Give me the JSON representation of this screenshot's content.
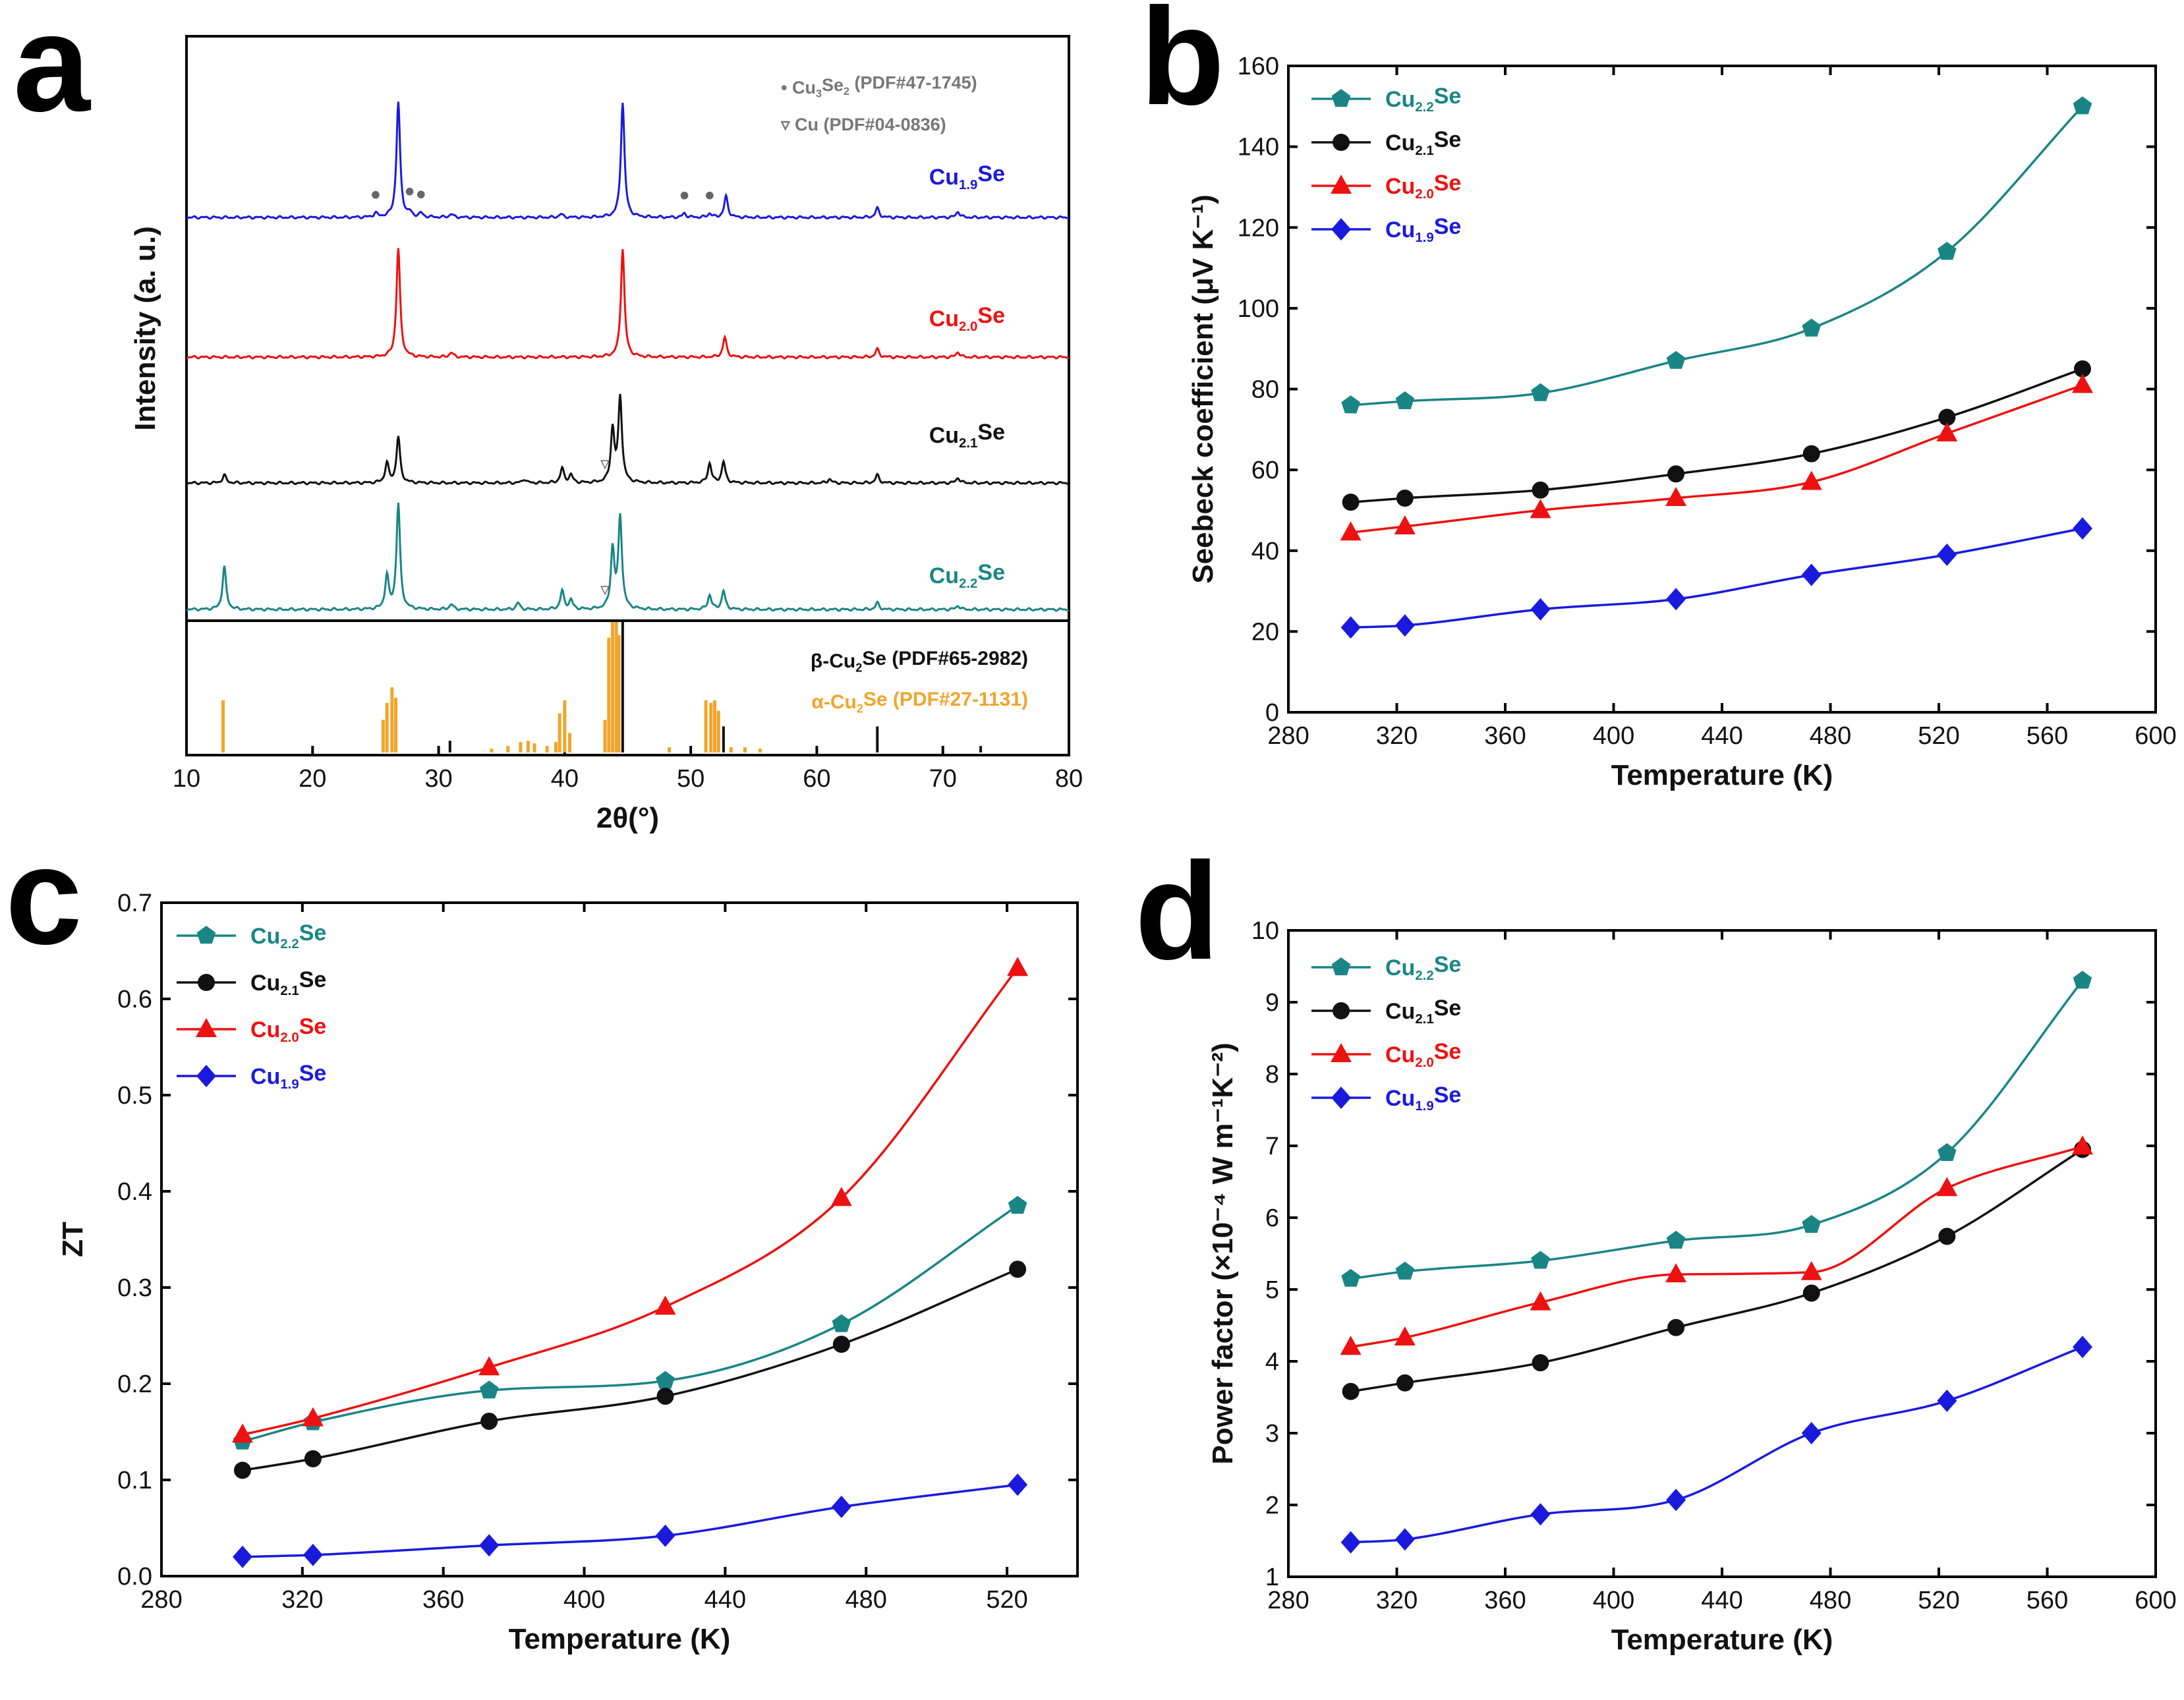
{
  "series_styles": {
    "Cu2.2Se": {
      "color": "#1a8585",
      "marker": "pentagon"
    },
    "Cu2.1Se": {
      "color": "#111111",
      "marker": "circle"
    },
    "Cu2.0Se": {
      "color": "#ee1111",
      "marker": "triangle"
    },
    "Cu1.9Se": {
      "color": "#1a1add",
      "marker": "diamond"
    }
  },
  "chart_data": [
    {
      "panel": "a",
      "type": "line",
      "title": "",
      "xlabel": "2θ(°)",
      "ylabel": "Intensity (a. u.)",
      "xlim": [
        10,
        80
      ],
      "xticks": [
        10,
        20,
        30,
        40,
        50,
        60,
        70,
        80
      ],
      "legend_annotations": [
        {
          "symbol": "•",
          "formula": "Cu3Se2",
          "main": "Cu",
          "sub1": "3",
          "mid": "Se",
          "sub2": "2",
          "ref": " (PDF#47-1745)"
        },
        {
          "symbol": "▿",
          "formula": "Cu",
          "main": "Cu",
          "sub1": "",
          "mid": "",
          "sub2": "",
          "ref": " (PDF#04-0836)"
        }
      ],
      "series": [
        {
          "name": "Cu1.9Se",
          "label": {
            "main": "Cu",
            "sub": "1.9",
            "tail": "Se"
          },
          "color": "#1a1add",
          "peaks": [
            [
              25.0,
              6
            ],
            [
              26.8,
              175
            ],
            [
              27.7,
              6
            ],
            [
              28.6,
              6
            ],
            [
              31.0,
              5
            ],
            [
              39.7,
              5
            ],
            [
              44.6,
              175
            ],
            [
              49.5,
              6
            ],
            [
              51.5,
              6
            ],
            [
              52.8,
              32
            ],
            [
              64.8,
              14
            ],
            [
              71.2,
              9
            ]
          ],
          "markers": [
            {
              "x": 25.0,
              "symbol": "•"
            },
            {
              "x": 27.7,
              "symbol": "•"
            },
            {
              "x": 28.6,
              "symbol": "•"
            },
            {
              "x": 49.5,
              "symbol": "•"
            },
            {
              "x": 51.5,
              "symbol": "•"
            }
          ]
        },
        {
          "name": "Cu2.0Se",
          "label": {
            "main": "Cu",
            "sub": "2.0",
            "tail": "Se"
          },
          "color": "#ee1111",
          "peaks": [
            [
              26.8,
              165
            ],
            [
              31.0,
              7
            ],
            [
              44.6,
              165
            ],
            [
              52.7,
              30
            ],
            [
              64.8,
              12
            ],
            [
              71.2,
              8
            ]
          ],
          "markers": []
        },
        {
          "name": "Cu2.1Se",
          "label": {
            "main": "Cu",
            "sub": "2.1",
            "tail": "Se"
          },
          "color": "#111111",
          "peaks": [
            [
              13.0,
              12
            ],
            [
              25.9,
              30
            ],
            [
              26.8,
              70
            ],
            [
              36.8,
              6
            ],
            [
              39.8,
              22
            ],
            [
              40.5,
              12
            ],
            [
              43.8,
              80
            ],
            [
              44.4,
              130
            ],
            [
              51.5,
              30
            ],
            [
              52.6,
              32
            ],
            [
              61.0,
              6
            ],
            [
              64.8,
              12
            ],
            [
              71.2,
              8
            ]
          ],
          "markers": [
            {
              "x": 43.2,
              "symbol": "▿"
            }
          ]
        },
        {
          "name": "Cu2.2Se",
          "label": {
            "main": "Cu",
            "sub": "2.2",
            "tail": "Se"
          },
          "color": "#1a8585",
          "peaks": [
            [
              13.0,
              65
            ],
            [
              25.9,
              50
            ],
            [
              26.8,
              160
            ],
            [
              31.0,
              8
            ],
            [
              36.3,
              10
            ],
            [
              39.8,
              28
            ],
            [
              40.5,
              14
            ],
            [
              43.8,
              90
            ],
            [
              44.4,
              140
            ],
            [
              51.5,
              22
            ],
            [
              52.6,
              28
            ],
            [
              64.8,
              10
            ],
            [
              71.2,
              6
            ]
          ],
          "markers": [
            {
              "x": 43.2,
              "symbol": "▿"
            }
          ]
        }
      ],
      "reference_patterns": [
        {
          "name": "β-Cu2Se (PDF#65-2982)",
          "label": {
            "main": "β-Cu",
            "sub": "2",
            "tail": "Se (PDF#65-2982)"
          },
          "color": "#111111",
          "lines": [
            [
              26.6,
              30
            ],
            [
              30.9,
              9
            ],
            [
              44.6,
              100
            ],
            [
              52.6,
              20
            ],
            [
              64.8,
              20
            ],
            [
              73.0,
              5
            ]
          ]
        },
        {
          "name": "α-Cu2Se (PDF#27-1131)",
          "label": {
            "main": "α-Cu",
            "sub": "2",
            "tail": "Se (PDF#27-1131)"
          },
          "color": "#f2a52a",
          "lines": [
            [
              12.9,
              40
            ],
            [
              25.6,
              25
            ],
            [
              25.9,
              38
            ],
            [
              26.3,
              50
            ],
            [
              26.6,
              42
            ],
            [
              34.2,
              3
            ],
            [
              35.5,
              5
            ],
            [
              36.5,
              8
            ],
            [
              37.1,
              9
            ],
            [
              37.6,
              7
            ],
            [
              38.6,
              5
            ],
            [
              39.3,
              8
            ],
            [
              39.6,
              30
            ],
            [
              40.0,
              40
            ],
            [
              40.4,
              15
            ],
            [
              43.2,
              25
            ],
            [
              43.5,
              88
            ],
            [
              43.8,
              100
            ],
            [
              44.1,
              100
            ],
            [
              44.3,
              90
            ],
            [
              48.3,
              4
            ],
            [
              51.2,
              40
            ],
            [
              51.6,
              38
            ],
            [
              51.9,
              40
            ],
            [
              52.2,
              32
            ],
            [
              53.2,
              4
            ],
            [
              54.3,
              4
            ],
            [
              55.5,
              3
            ]
          ]
        }
      ]
    },
    {
      "panel": "b",
      "type": "line",
      "title": "",
      "xlabel": "Temperature (K)",
      "ylabel": "Seebeck coefficient (μV K⁻¹)",
      "xlim": [
        280,
        600
      ],
      "ylim": [
        0,
        160
      ],
      "xticks": [
        280,
        320,
        360,
        400,
        440,
        480,
        520,
        560,
        600
      ],
      "yticks": [
        0,
        20,
        40,
        60,
        80,
        100,
        120,
        140,
        160
      ],
      "x": [
        303,
        323,
        373,
        423,
        473,
        523,
        573
      ],
      "series": [
        {
          "name": "Cu2.2Se",
          "label": {
            "main": "Cu",
            "sub": "2.2",
            "tail": "Se"
          },
          "values": [
            76,
            77,
            79,
            87,
            95,
            114,
            150
          ]
        },
        {
          "name": "Cu2.1Se",
          "label": {
            "main": "Cu",
            "sub": "2.1",
            "tail": "Se"
          },
          "values": [
            52,
            53,
            55,
            59,
            64,
            73,
            85
          ]
        },
        {
          "name": "Cu2.0Se",
          "label": {
            "main": "Cu",
            "sub": "2.0",
            "tail": "Se"
          },
          "values": [
            44.5,
            46,
            50,
            53,
            57,
            69,
            81
          ]
        },
        {
          "name": "Cu1.9Se",
          "label": {
            "main": "Cu",
            "sub": "1.9",
            "tail": "Se"
          },
          "values": [
            21,
            21.5,
            25.5,
            28,
            34,
            39,
            45.5
          ]
        }
      ],
      "legend": "top-left"
    },
    {
      "panel": "c",
      "type": "line",
      "title": "",
      "xlabel": "Temperature (K)",
      "ylabel": "ZT",
      "xlim": [
        280,
        540
      ],
      "ylim": [
        0,
        0.7
      ],
      "xticks": [
        280,
        320,
        360,
        400,
        440,
        480,
        520
      ],
      "yticks": [
        0.0,
        0.1,
        0.2,
        0.3,
        0.4,
        0.5,
        0.6,
        0.7
      ],
      "ytick_labels": [
        "0.0",
        "0.1",
        "0.2",
        "0.3",
        "0.4",
        "0.5",
        "0.6",
        "0.7"
      ],
      "x": [
        303,
        323,
        373,
        423,
        473,
        523
      ],
      "series": [
        {
          "name": "Cu2.2Se",
          "label": {
            "main": "Cu",
            "sub": "2.2",
            "tail": "Se"
          },
          "values": [
            0.14,
            0.16,
            0.193,
            0.203,
            0.262,
            0.385
          ]
        },
        {
          "name": "Cu2.1Se",
          "label": {
            "main": "Cu",
            "sub": "2.1",
            "tail": "Se"
          },
          "values": [
            0.11,
            0.122,
            0.161,
            0.187,
            0.241,
            0.319
          ]
        },
        {
          "name": "Cu2.0Se",
          "label": {
            "main": "Cu",
            "sub": "2.0",
            "tail": "Se"
          },
          "values": [
            0.147,
            0.164,
            0.217,
            0.28,
            0.393,
            0.632
          ]
        },
        {
          "name": "Cu1.9Se",
          "label": {
            "main": "Cu",
            "sub": "1.9",
            "tail": "Se"
          },
          "values": [
            0.02,
            0.022,
            0.032,
            0.042,
            0.072,
            0.095
          ]
        }
      ],
      "legend": "top-left"
    },
    {
      "panel": "d",
      "type": "line",
      "title": "",
      "xlabel": "Temperature (K)",
      "ylabel": "Power factor (×10⁻⁴ W m⁻¹K⁻²)",
      "xlim": [
        280,
        600
      ],
      "ylim": [
        1,
        10
      ],
      "xticks": [
        280,
        320,
        360,
        400,
        440,
        480,
        520,
        560,
        600
      ],
      "yticks": [
        1,
        2,
        3,
        4,
        5,
        6,
        7,
        8,
        9,
        10
      ],
      "x": [
        303,
        323,
        373,
        423,
        473,
        523,
        573
      ],
      "series": [
        {
          "name": "Cu2.2Se",
          "label": {
            "main": "Cu",
            "sub": "2.2",
            "tail": "Se"
          },
          "values": [
            5.15,
            5.25,
            5.4,
            5.68,
            5.9,
            6.9,
            9.3
          ]
        },
        {
          "name": "Cu2.1Se",
          "label": {
            "main": "Cu",
            "sub": "2.1",
            "tail": "Se"
          },
          "values": [
            3.58,
            3.7,
            3.98,
            4.47,
            4.95,
            5.74,
            6.95
          ]
        },
        {
          "name": "Cu2.0Se",
          "label": {
            "main": "Cu",
            "sub": "2.0",
            "tail": "Se"
          },
          "values": [
            4.2,
            4.33,
            4.82,
            5.21,
            5.24,
            6.41,
            6.99
          ]
        },
        {
          "name": "Cu1.9Se",
          "label": {
            "main": "Cu",
            "sub": "1.9",
            "tail": "Se"
          },
          "values": [
            1.48,
            1.52,
            1.87,
            2.07,
            3.0,
            3.45,
            4.2
          ]
        }
      ],
      "legend": "top-left"
    }
  ]
}
